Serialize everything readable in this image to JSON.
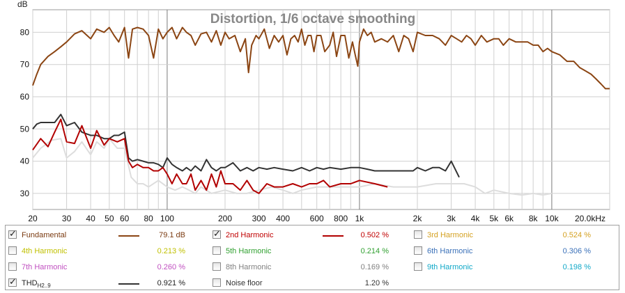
{
  "chart_data": {
    "type": "line",
    "title": "Distortion, 1/6 octave smoothing",
    "ylabel": "dB",
    "xscale": "log",
    "xlim": [
      20,
      20000
    ],
    "ylim": [
      25,
      87
    ],
    "grid": true,
    "x_tick_labels": [
      {
        "v": 20,
        "t": "20"
      },
      {
        "v": 30,
        "t": "30"
      },
      {
        "v": 40,
        "t": "40"
      },
      {
        "v": 50,
        "t": "50"
      },
      {
        "v": 60,
        "t": "60"
      },
      {
        "v": 80,
        "t": "80"
      },
      {
        "v": 100,
        "t": "100"
      },
      {
        "v": 200,
        "t": "200"
      },
      {
        "v": 300,
        "t": "300"
      },
      {
        "v": 400,
        "t": "400"
      },
      {
        "v": 600,
        "t": "600"
      },
      {
        "v": 800,
        "t": "800"
      },
      {
        "v": 1000,
        "t": "1k"
      },
      {
        "v": 2000,
        "t": "2k"
      },
      {
        "v": 3000,
        "t": "3k"
      },
      {
        "v": 4000,
        "t": "4k"
      },
      {
        "v": 5000,
        "t": "5k"
      },
      {
        "v": 6000,
        "t": "6k"
      },
      {
        "v": 8000,
        "t": "8k"
      },
      {
        "v": 10000,
        "t": "10k"
      },
      {
        "v": 20000,
        "t": "20.0kHz"
      }
    ],
    "y_tick_labels": [
      {
        "v": 30,
        "t": "30"
      },
      {
        "v": 40,
        "t": "40"
      },
      {
        "v": 50,
        "t": "50"
      },
      {
        "v": 60,
        "t": "60"
      },
      {
        "v": 70,
        "t": "70"
      },
      {
        "v": 80,
        "t": "80"
      }
    ],
    "series": [
      {
        "name": "Fundamental",
        "color": "#8b4513",
        "x": [
          20,
          21,
          22,
          24,
          26,
          28,
          30,
          33,
          36,
          40,
          43,
          47,
          50,
          53,
          56,
          60,
          63,
          66,
          70,
          75,
          80,
          85,
          90,
          95,
          100,
          106,
          112,
          120,
          126,
          133,
          140,
          150,
          160,
          170,
          180,
          190,
          200,
          210,
          225,
          240,
          255,
          265,
          275,
          290,
          300,
          320,
          340,
          360,
          380,
          400,
          420,
          440,
          460,
          480,
          500,
          520,
          540,
          560,
          580,
          600,
          630,
          660,
          700,
          730,
          760,
          800,
          840,
          880,
          920,
          950,
          980,
          1000,
          1050,
          1100,
          1150,
          1200,
          1300,
          1400,
          1500,
          1600,
          1700,
          1800,
          1900,
          2000,
          2200,
          2400,
          2600,
          2800,
          3000,
          3200,
          3400,
          3600,
          3800,
          4000,
          4300,
          4600,
          5000,
          5300,
          5600,
          6000,
          6500,
          7000,
          7500,
          8000,
          8500,
          9000,
          9500,
          10000,
          11000,
          12000,
          13000,
          14000,
          15000,
          16000,
          17000,
          18000,
          19000,
          20000
        ],
        "values": [
          63.5,
          67,
          70,
          72.5,
          74,
          75.5,
          77,
          79.5,
          80.5,
          78,
          81,
          80,
          81.5,
          79,
          77,
          81.5,
          72,
          81,
          81.5,
          81,
          79,
          72,
          81,
          78,
          80,
          81.5,
          78,
          81.5,
          80,
          79,
          76,
          79.5,
          80,
          77,
          80.5,
          76,
          80,
          78,
          79,
          74,
          78,
          67.5,
          76,
          79,
          78,
          81,
          75,
          79,
          77,
          79,
          73,
          78,
          79,
          77,
          81,
          76,
          79,
          79,
          74,
          79,
          79,
          74,
          76,
          80,
          72.5,
          79,
          79,
          72,
          77,
          73,
          69.5,
          77,
          81,
          79,
          80,
          77,
          78,
          77,
          79,
          74,
          79,
          78,
          74,
          80,
          79,
          79,
          78,
          76,
          79,
          78,
          77,
          79,
          78,
          76,
          79,
          77,
          78,
          78,
          76,
          78,
          77,
          77,
          77,
          76,
          76,
          74,
          75,
          74,
          73,
          71,
          71,
          69,
          68,
          67,
          65.5,
          64,
          62.5,
          62.5
        ]
      },
      {
        "name": "2nd Harmonic",
        "color": "#b20000",
        "x": [
          20,
          22,
          24,
          26,
          28,
          30,
          33,
          36,
          40,
          43,
          47,
          50,
          55,
          60,
          63,
          66,
          70,
          75,
          80,
          85,
          90,
          95,
          100,
          106,
          112,
          120,
          126,
          133,
          140,
          150,
          160,
          170,
          180,
          190,
          200,
          220,
          240,
          260,
          280,
          300,
          330,
          360,
          400,
          450,
          500,
          550,
          600,
          650,
          700,
          800,
          900,
          1000,
          1200,
          1400
        ],
        "values": [
          43.5,
          47,
          44.5,
          49,
          53,
          46,
          45.5,
          51,
          44,
          49.5,
          45,
          47,
          46,
          47,
          40,
          38,
          39,
          38,
          38,
          37,
          37,
          38,
          36,
          33,
          36,
          33,
          33,
          36,
          31,
          34,
          31,
          36,
          32,
          37,
          33,
          33,
          31,
          34,
          31,
          30,
          33,
          32,
          32,
          33,
          32,
          33,
          33,
          34,
          32,
          33,
          33,
          34,
          33,
          32
        ]
      },
      {
        "name": "THD",
        "color": "#333333",
        "x": [
          20,
          21,
          22,
          24,
          26,
          28,
          30,
          33,
          36,
          40,
          43,
          47,
          50,
          53,
          56,
          60,
          63,
          66,
          70,
          75,
          80,
          85,
          90,
          95,
          100,
          106,
          112,
          120,
          126,
          133,
          140,
          150,
          160,
          170,
          180,
          190,
          200,
          220,
          240,
          260,
          280,
          300,
          330,
          360,
          400,
          450,
          500,
          550,
          600,
          650,
          700,
          800,
          900,
          1000,
          1100,
          1200,
          1300,
          1400,
          1500,
          1700,
          1900,
          2000,
          2200,
          2400,
          2600,
          2800,
          3000,
          3300
        ],
        "values": [
          50,
          51.5,
          52,
          52,
          52,
          54.5,
          51,
          52,
          49,
          48,
          48,
          47,
          47,
          48,
          48,
          49,
          41,
          40,
          40.5,
          40,
          39.5,
          39.5,
          39,
          38,
          41,
          39,
          38,
          37,
          38,
          37,
          38.5,
          37,
          40.5,
          38,
          37,
          38,
          38,
          39.5,
          37,
          38,
          37,
          38,
          37.5,
          38,
          37.5,
          37,
          38,
          37,
          38,
          37.5,
          38,
          37.5,
          38,
          38,
          37.5,
          37,
          37,
          37,
          37,
          37,
          37,
          38,
          37,
          38,
          38,
          37,
          40,
          35
        ]
      },
      {
        "name": "3rd Harmonic",
        "color": "#dddddd",
        "x": [
          20,
          22,
          25,
          28,
          30,
          33,
          36,
          40,
          43,
          47,
          50,
          55,
          60,
          65,
          70,
          75,
          80,
          90,
          100,
          110,
          120,
          130,
          140,
          150,
          170,
          200,
          230,
          260,
          300,
          350,
          400,
          450,
          500,
          600,
          700,
          800,
          1000,
          1200,
          1500,
          2000,
          2500,
          3000,
          3500,
          4000,
          4500,
          5000,
          6000,
          7000,
          8000,
          9000,
          10000
        ],
        "values": [
          41,
          44,
          46.5,
          47,
          41,
          43,
          46,
          42,
          46,
          44,
          47,
          44,
          44,
          35,
          33,
          33,
          32,
          34,
          32,
          31,
          32,
          31,
          30,
          32,
          30,
          31,
          30,
          30,
          31,
          32,
          31,
          30,
          31,
          32,
          32,
          32,
          32,
          33,
          32,
          32,
          33,
          33,
          33,
          32,
          30,
          31,
          30,
          29.5,
          30,
          29.5,
          30
        ]
      }
    ],
    "legend": [
      {
        "label": "Fundamental",
        "checked": true,
        "value": "79.1 dB",
        "color": "#8b4513",
        "text_color": "#7a3a10",
        "swatch": true
      },
      {
        "label": "2nd Harmonic",
        "checked": true,
        "value": "0.502 %",
        "color": "#b20000",
        "text_color": "#c00000",
        "swatch": true
      },
      {
        "label": "3rd Harmonic",
        "checked": false,
        "value": "0.524 %",
        "color": "#d4a020",
        "text_color": "#d4a020",
        "swatch": false
      },
      {
        "label": "4th Harmonic",
        "checked": false,
        "value": "0.213 %",
        "color": "#c8c800",
        "text_color": "#c0c000",
        "swatch": false
      },
      {
        "label": "5th Harmonic",
        "checked": false,
        "value": "0.214 %",
        "color": "#40b040",
        "text_color": "#30a030",
        "swatch": false
      },
      {
        "label": "6th Harmonic",
        "checked": false,
        "value": "0.306 %",
        "color": "#4a80c0",
        "text_color": "#3a70b8",
        "swatch": false
      },
      {
        "label": "7th Harmonic",
        "checked": false,
        "value": "0.260 %",
        "color": "#d060d0",
        "text_color": "#c050c0",
        "swatch": false
      },
      {
        "label": "8th Harmonic",
        "checked": false,
        "value": "0.169 %",
        "color": "#909090",
        "text_color": "#808080",
        "swatch": false
      },
      {
        "label": "9th Harmonic",
        "checked": false,
        "value": "0.198 %",
        "color": "#20b0d0",
        "text_color": "#10a8c8",
        "swatch": false
      },
      {
        "label": "THD",
        "sub": "H2..9",
        "checked": true,
        "value": "0.921 %",
        "color": "#333333",
        "text_color": "#222222",
        "swatch": true
      },
      {
        "label": "Noise floor",
        "checked": false,
        "value": "1.20 %",
        "color": "#606060",
        "text_color": "#333333",
        "swatch": false
      }
    ]
  }
}
